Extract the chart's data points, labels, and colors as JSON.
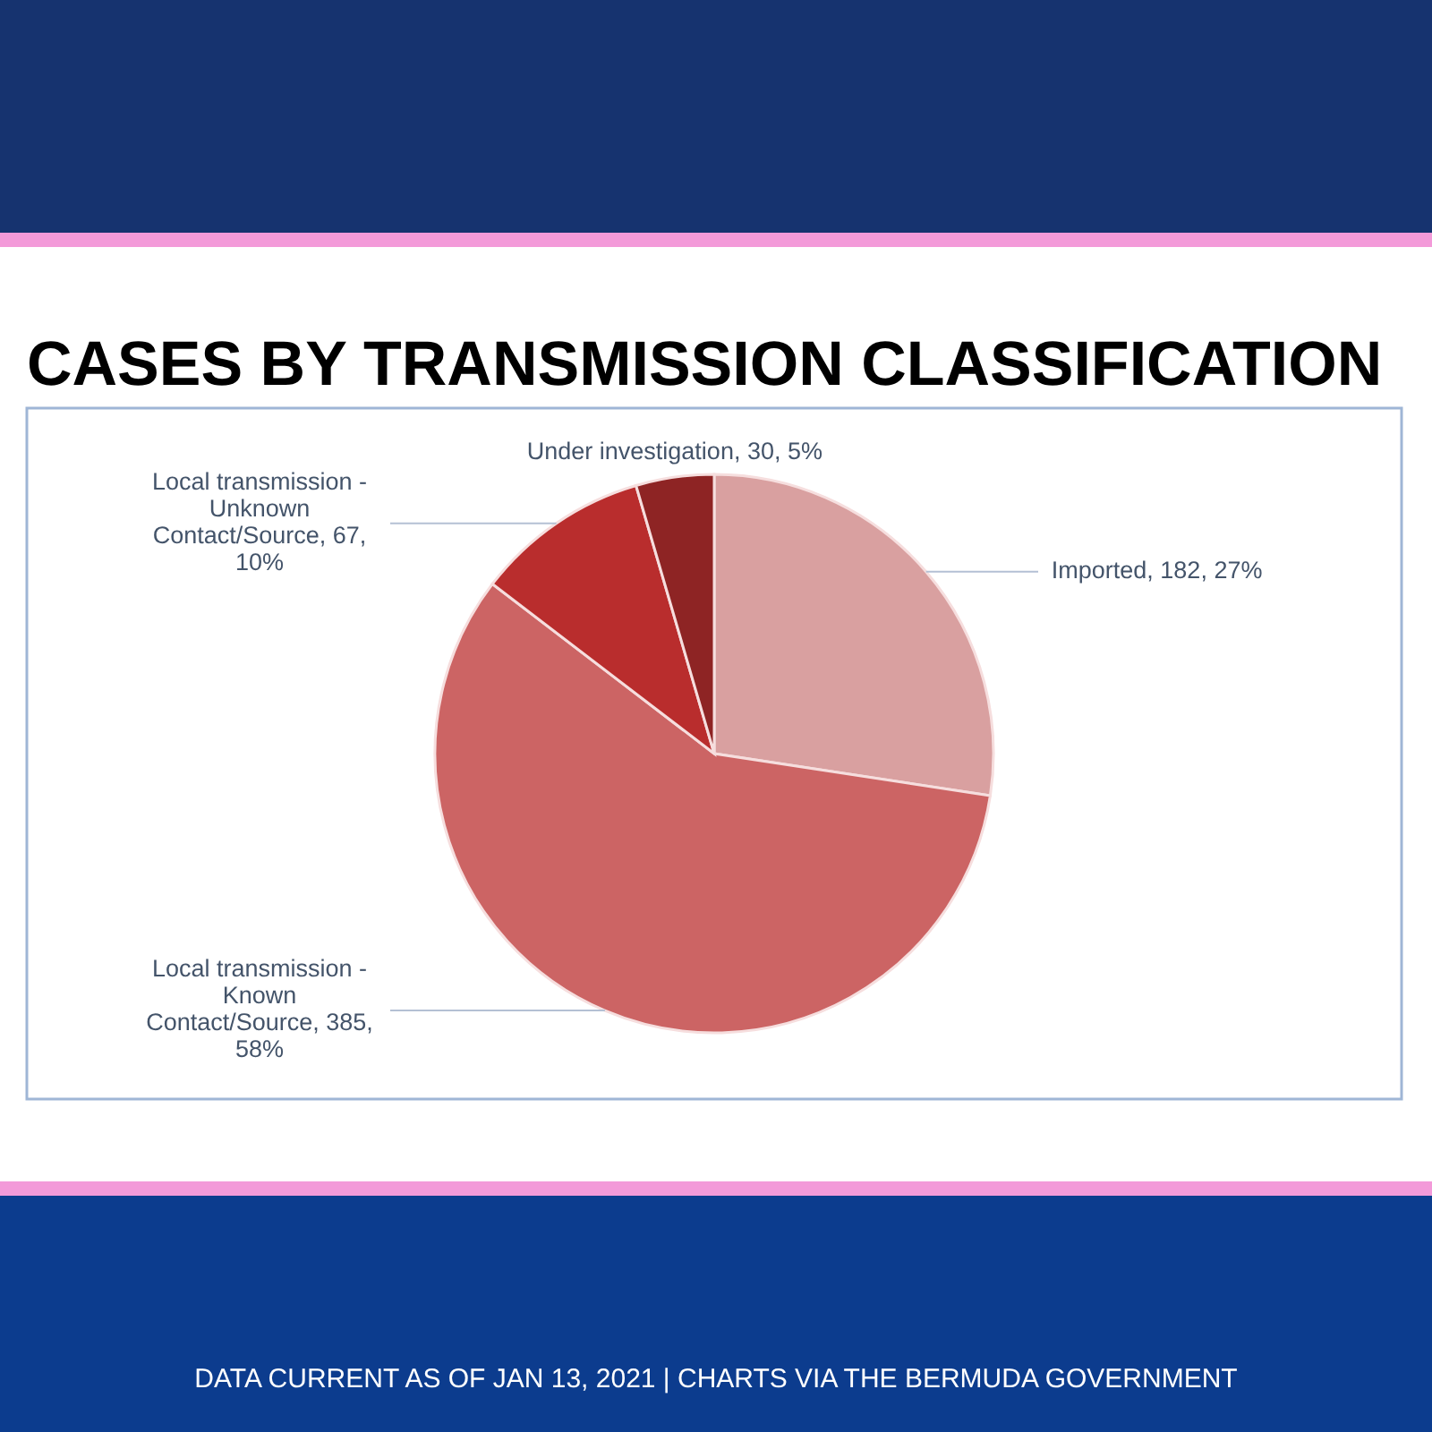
{
  "chart_data": {
    "type": "pie",
    "title": "CASES BY TRANSMISSION CLASSIFICATION",
    "categories": [
      "Imported",
      "Local transmission - Known Contact/Source",
      "Local transmission - Unknown Contact/Source",
      "Under investigation"
    ],
    "values": [
      182,
      385,
      67,
      30
    ],
    "value_labels": [
      "182, 27%",
      "385, 58%",
      "67, 10%",
      "30, 5%"
    ],
    "colors": [
      "#d9a0a0",
      "#cc6464",
      "#b92d2d",
      "#8e2424"
    ],
    "annotations": [
      "DATA CURRENT AS OF JAN 13, 2021 | CHARTS VIA THE BERMUDA GOVERNMENT"
    ]
  }
}
